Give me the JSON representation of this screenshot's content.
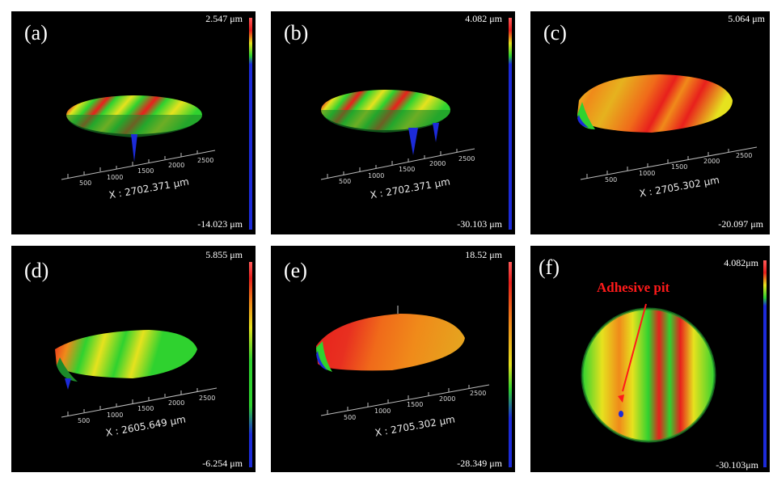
{
  "panels": [
    {
      "label": "(a)",
      "max": "2.547 μm",
      "min": "-14.023 μm",
      "x_readout": "X : 2702.371 μm",
      "ticks": [
        "500",
        "1000",
        "1500",
        "2000",
        "2500"
      ]
    },
    {
      "label": "(b)",
      "max": "4.082 μm",
      "min": "-30.103 μm",
      "x_readout": "X : 2702.371 μm",
      "ticks": [
        "500",
        "1000",
        "1500",
        "2000",
        "2500"
      ]
    },
    {
      "label": "(c)",
      "max": "5.064 μm",
      "min": "-20.097 μm",
      "x_readout": "X : 2705.302 μm",
      "ticks": [
        "500",
        "1000",
        "1500",
        "2000",
        "2500"
      ]
    },
    {
      "label": "(d)",
      "max": "5.855 μm",
      "min": "-6.254 μm",
      "x_readout": "X : 2605.649 μm",
      "ticks": [
        "500",
        "1000",
        "1500",
        "2000",
        "2500"
      ]
    },
    {
      "label": "(e)",
      "max": "18.52 μm",
      "min": "-28.349 μm",
      "x_readout": "X : 2705.302 μm",
      "ticks": [
        "500",
        "1000",
        "1500",
        "2000",
        "2500"
      ]
    },
    {
      "label": "(f)",
      "max": "4.082μm",
      "min": "-30.103μm",
      "annotation": "Adhesive pit"
    }
  ],
  "colors": {
    "red": "#e8201c",
    "orange": "#f08a1a",
    "yellow": "#e6e21e",
    "green": "#2fd22f",
    "blue": "#1c2bd9",
    "annotation": "#ff1a1a"
  }
}
